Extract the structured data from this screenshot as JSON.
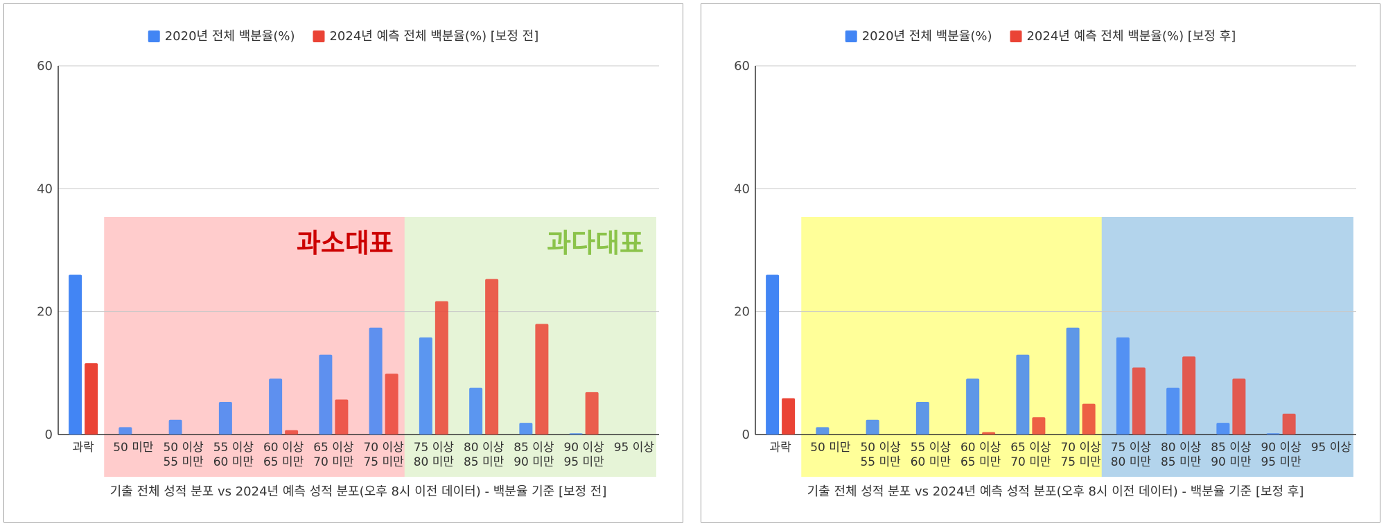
{
  "chart_data": [
    {
      "type": "bar",
      "title": "",
      "xlabel": "기출 전체 성적 분포 vs 2024년 예측 성적 분포(오후 8시 이전 데이터) - 백분율 기준 [보정 전]",
      "ylabel": "",
      "ylim": [
        0,
        60
      ],
      "yticks": [
        "0",
        "20",
        "40",
        "60"
      ],
      "grid": true,
      "legend_position": "top",
      "categories": [
        [
          "과락"
        ],
        [
          "50 미만"
        ],
        [
          "50 이상",
          "55 미만"
        ],
        [
          "55 이상",
          "60 미만"
        ],
        [
          "60 이상",
          "65 미만"
        ],
        [
          "65 이상",
          "70 미만"
        ],
        [
          "70 이상",
          "75 미만"
        ],
        [
          "75 이상",
          "80 미만"
        ],
        [
          "80 이상",
          "85 미만"
        ],
        [
          "85 이상",
          "90 미만"
        ],
        [
          "90 이상",
          "95 미만"
        ],
        [
          "95 이상"
        ]
      ],
      "series": [
        {
          "name": "2020년 전체 백분율(%)",
          "color": "#4285f4",
          "values": [
            26,
            1.2,
            2.4,
            5.3,
            9.1,
            13.0,
            17.4,
            15.8,
            7.6,
            1.9,
            0.2,
            0
          ]
        },
        {
          "name": "2024년 예측 전체 백분율(%) [보정 전]",
          "color": "#ea4335",
          "values": [
            11.6,
            0,
            0,
            0,
            0.7,
            5.7,
            9.9,
            21.7,
            25.3,
            18.0,
            6.9,
            0
          ]
        }
      ],
      "overlay_regions": [
        {
          "label": "과소대표",
          "from_category": 1,
          "to_category": 6,
          "color": "#ffcccc",
          "label_color": "#cc0000"
        },
        {
          "label": "과다대표",
          "from_category": 7,
          "to_category": 11,
          "color": "#e6f4d7",
          "label_color": "#8bc34a"
        }
      ]
    },
    {
      "type": "bar",
      "title": "",
      "xlabel": "기출 전체 성적 분포 vs 2024년 예측 성적 분포(오후 8시 이전 데이터) - 백분율 기준 [보정 후]",
      "ylabel": "",
      "ylim": [
        0,
        60
      ],
      "yticks": [
        "0",
        "20",
        "40",
        "60"
      ],
      "grid": true,
      "legend_position": "top",
      "categories": [
        [
          "과락"
        ],
        [
          "50 미만"
        ],
        [
          "50 이상",
          "55 미만"
        ],
        [
          "55 이상",
          "60 미만"
        ],
        [
          "60 이상",
          "65 미만"
        ],
        [
          "65 이상",
          "70 미만"
        ],
        [
          "70 이상",
          "75 미만"
        ],
        [
          "75 이상",
          "80 미만"
        ],
        [
          "80 이상",
          "85 미만"
        ],
        [
          "85 이상",
          "90 미만"
        ],
        [
          "90 이상",
          "95 미만"
        ],
        [
          "95 이상"
        ]
      ],
      "series": [
        {
          "name": "2020년 전체 백분율(%)",
          "color": "#4285f4",
          "values": [
            26,
            1.2,
            2.4,
            5.3,
            9.1,
            13.0,
            17.4,
            15.8,
            7.6,
            1.9,
            0.2,
            0
          ]
        },
        {
          "name": "2024년 예측 전체 백분율(%) [보정 후]",
          "color": "#ea4335",
          "values": [
            5.9,
            0,
            0,
            0,
            0.4,
            2.8,
            5.0,
            10.9,
            12.7,
            9.1,
            3.4,
            0
          ]
        }
      ],
      "overlay_regions": [
        {
          "label": "",
          "from_category": 1,
          "to_category": 6,
          "color": "#ffff99",
          "label_color": ""
        },
        {
          "label": "",
          "from_category": 7,
          "to_category": 11,
          "color": "#b3d4ec",
          "label_color": ""
        }
      ]
    }
  ]
}
